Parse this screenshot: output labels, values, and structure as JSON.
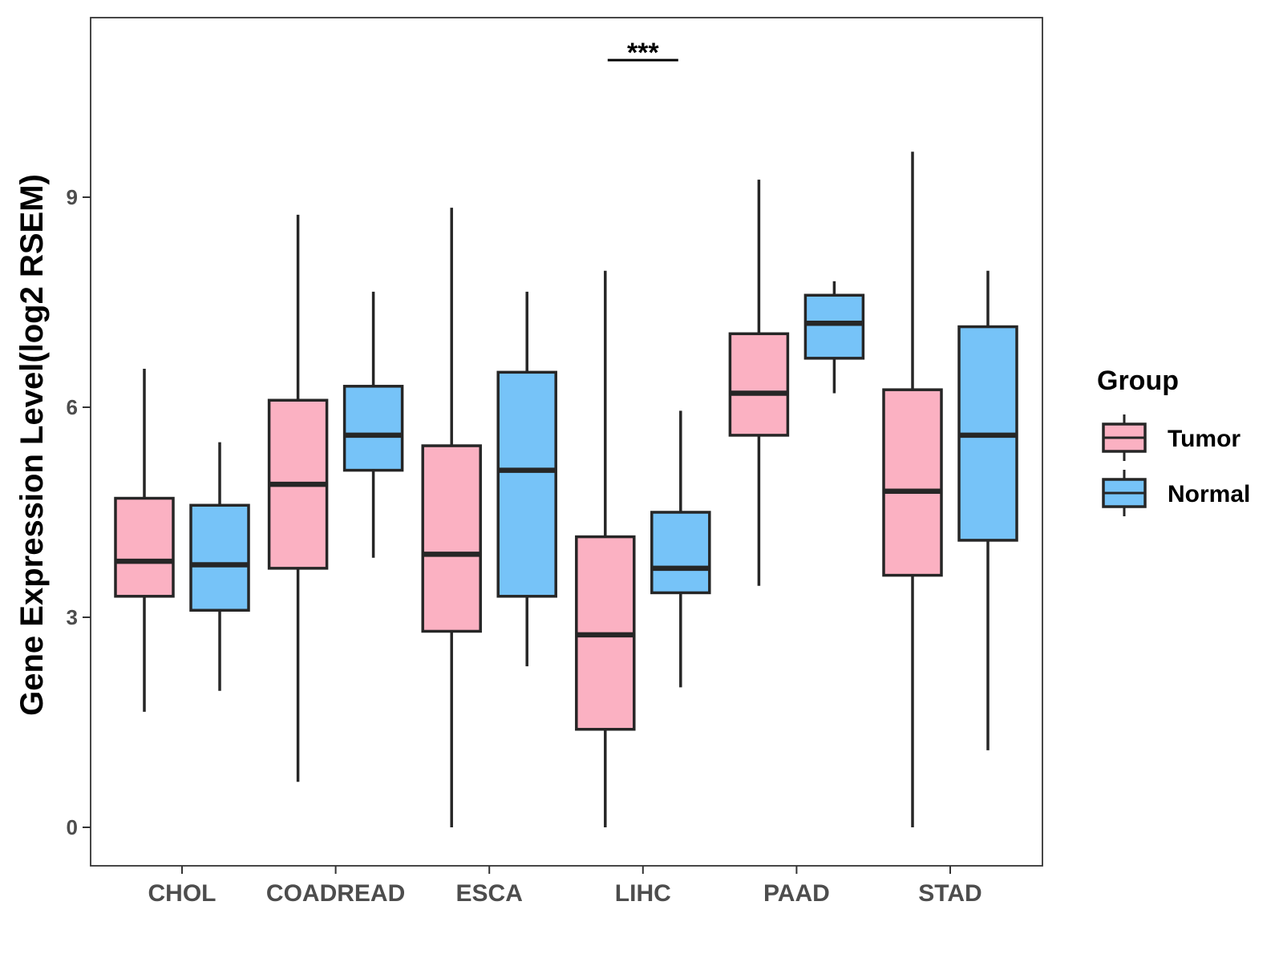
{
  "chart_data": {
    "type": "boxplot",
    "title": "",
    "xlabel": "",
    "ylabel": "Gene Expression Level(log2 RSEM)",
    "ylim": [
      -0.5,
      11.6
    ],
    "yticks": [
      0,
      3,
      6,
      9
    ],
    "categories": [
      "CHOL",
      "COADREAD",
      "ESCA",
      "LIHC",
      "PAAD",
      "STAD"
    ],
    "legend": {
      "title": "Group",
      "position": "right",
      "entries": [
        {
          "name": "Tumor",
          "color": "#fbb1c2"
        },
        {
          "name": "Normal",
          "color": "#76c3f8"
        }
      ]
    },
    "series": [
      {
        "name": "Tumor",
        "color": "#fbb1c2",
        "boxes": [
          {
            "category": "CHOL",
            "min": 1.65,
            "q1": 3.3,
            "median": 3.8,
            "q3": 4.7,
            "max": 6.55
          },
          {
            "category": "COADREAD",
            "min": 0.65,
            "q1": 3.7,
            "median": 4.9,
            "q3": 6.1,
            "max": 8.75
          },
          {
            "category": "ESCA",
            "min": 0.0,
            "q1": 2.8,
            "median": 3.9,
            "q3": 5.45,
            "max": 8.85
          },
          {
            "category": "LIHC",
            "min": 0.0,
            "q1": 1.4,
            "median": 2.75,
            "q3": 4.15,
            "max": 7.95
          },
          {
            "category": "PAAD",
            "min": 3.45,
            "q1": 5.6,
            "median": 6.2,
            "q3": 7.05,
            "max": 9.25
          },
          {
            "category": "STAD",
            "min": 0.0,
            "q1": 3.6,
            "median": 4.8,
            "q3": 6.25,
            "max": 9.65
          }
        ]
      },
      {
        "name": "Normal",
        "color": "#76c3f8",
        "boxes": [
          {
            "category": "CHOL",
            "min": 1.95,
            "q1": 3.1,
            "median": 3.75,
            "q3": 4.6,
            "max": 5.5
          },
          {
            "category": "COADREAD",
            "min": 3.85,
            "q1": 5.1,
            "median": 5.6,
            "q3": 6.3,
            "max": 7.65
          },
          {
            "category": "ESCA",
            "min": 2.3,
            "q1": 3.3,
            "median": 5.1,
            "q3": 6.5,
            "max": 7.65
          },
          {
            "category": "LIHC",
            "min": 2.0,
            "q1": 3.35,
            "median": 3.7,
            "q3": 4.5,
            "max": 5.95
          },
          {
            "category": "PAAD",
            "min": 6.2,
            "q1": 6.7,
            "median": 7.2,
            "q3": 7.6,
            "max": 7.8
          },
          {
            "category": "STAD",
            "min": 1.1,
            "q1": 4.1,
            "median": 5.6,
            "q3": 7.15,
            "max": 7.95
          }
        ]
      }
    ],
    "annotations": [
      {
        "category": "LIHC",
        "text": "***"
      }
    ]
  }
}
